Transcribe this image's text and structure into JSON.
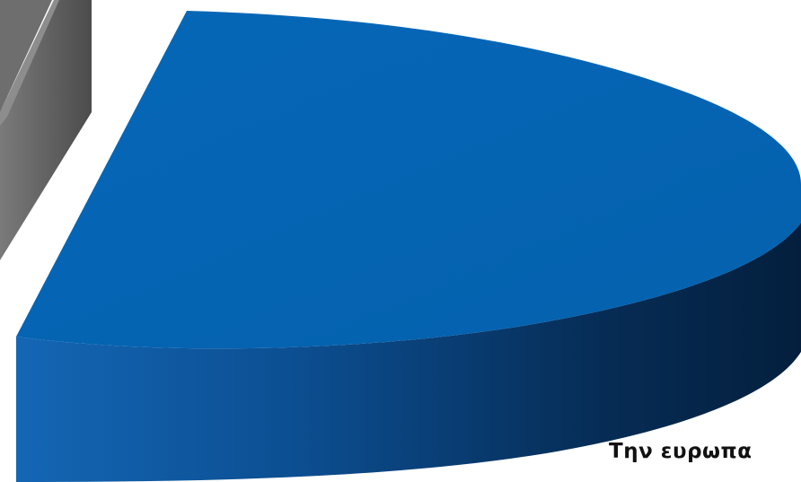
{
  "chart_data": {
    "type": "pie",
    "style": "3d-exploded",
    "slices": [
      {
        "label": "Την ευρωπα",
        "color": "#0563b0",
        "side_color": "#0b3a6a"
      },
      {
        "label": "",
        "color": "#6f6f6f",
        "side_color": "#4f4f4f"
      }
    ]
  }
}
